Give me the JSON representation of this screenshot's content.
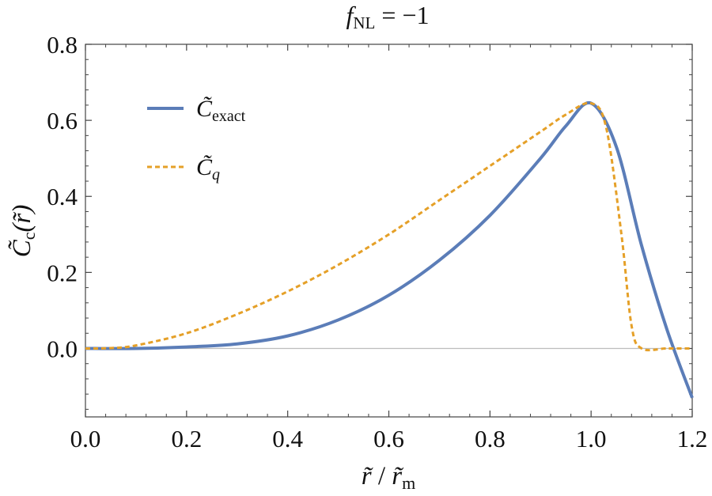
{
  "chart_data": {
    "type": "line",
    "title": {
      "main": "f",
      "sub": "NL",
      "rest": " = −1"
    },
    "xlabel": {
      "r": "r̃",
      "sep": " / ",
      "rm": "r̃",
      "sub": "m"
    },
    "ylabel": {
      "main": "C̃",
      "sub": "c",
      "arg": "(r̃)"
    },
    "xlim": [
      0.0,
      1.2
    ],
    "ylim": [
      -0.18,
      0.8
    ],
    "xticks": [
      "0.0",
      "0.2",
      "0.4",
      "0.6",
      "0.8",
      "1.0",
      "1.2"
    ],
    "yticks": [
      "0.0",
      "0.2",
      "0.4",
      "0.6",
      "0.8"
    ],
    "legend_position": "top-left",
    "series": [
      {
        "name": "C̃",
        "name_sub": "exact",
        "color": "#5b7db8",
        "style": "solid",
        "x": [
          0.0,
          0.1,
          0.2,
          0.3,
          0.4,
          0.5,
          0.6,
          0.7,
          0.8,
          0.9,
          0.95,
          1.0,
          1.05,
          1.1,
          1.15,
          1.2
        ],
        "y": [
          0.0,
          0.0,
          0.004,
          0.012,
          0.033,
          0.075,
          0.14,
          0.232,
          0.35,
          0.5,
          0.585,
          0.645,
          0.53,
          0.27,
          0.05,
          -0.13
        ]
      },
      {
        "name": "C̃",
        "name_sub": "q",
        "color": "#e5a028",
        "style": "dashed",
        "x": [
          0.0,
          0.05,
          0.1,
          0.2,
          0.3,
          0.4,
          0.5,
          0.6,
          0.7,
          0.8,
          0.9,
          0.95,
          1.0,
          1.03,
          1.06,
          1.08,
          1.1,
          1.15,
          1.2
        ],
        "y": [
          0.0,
          0.001,
          0.008,
          0.04,
          0.09,
          0.15,
          0.22,
          0.3,
          0.39,
          0.48,
          0.57,
          0.615,
          0.645,
          0.58,
          0.3,
          0.06,
          0.0,
          0.0,
          0.0
        ]
      }
    ]
  }
}
